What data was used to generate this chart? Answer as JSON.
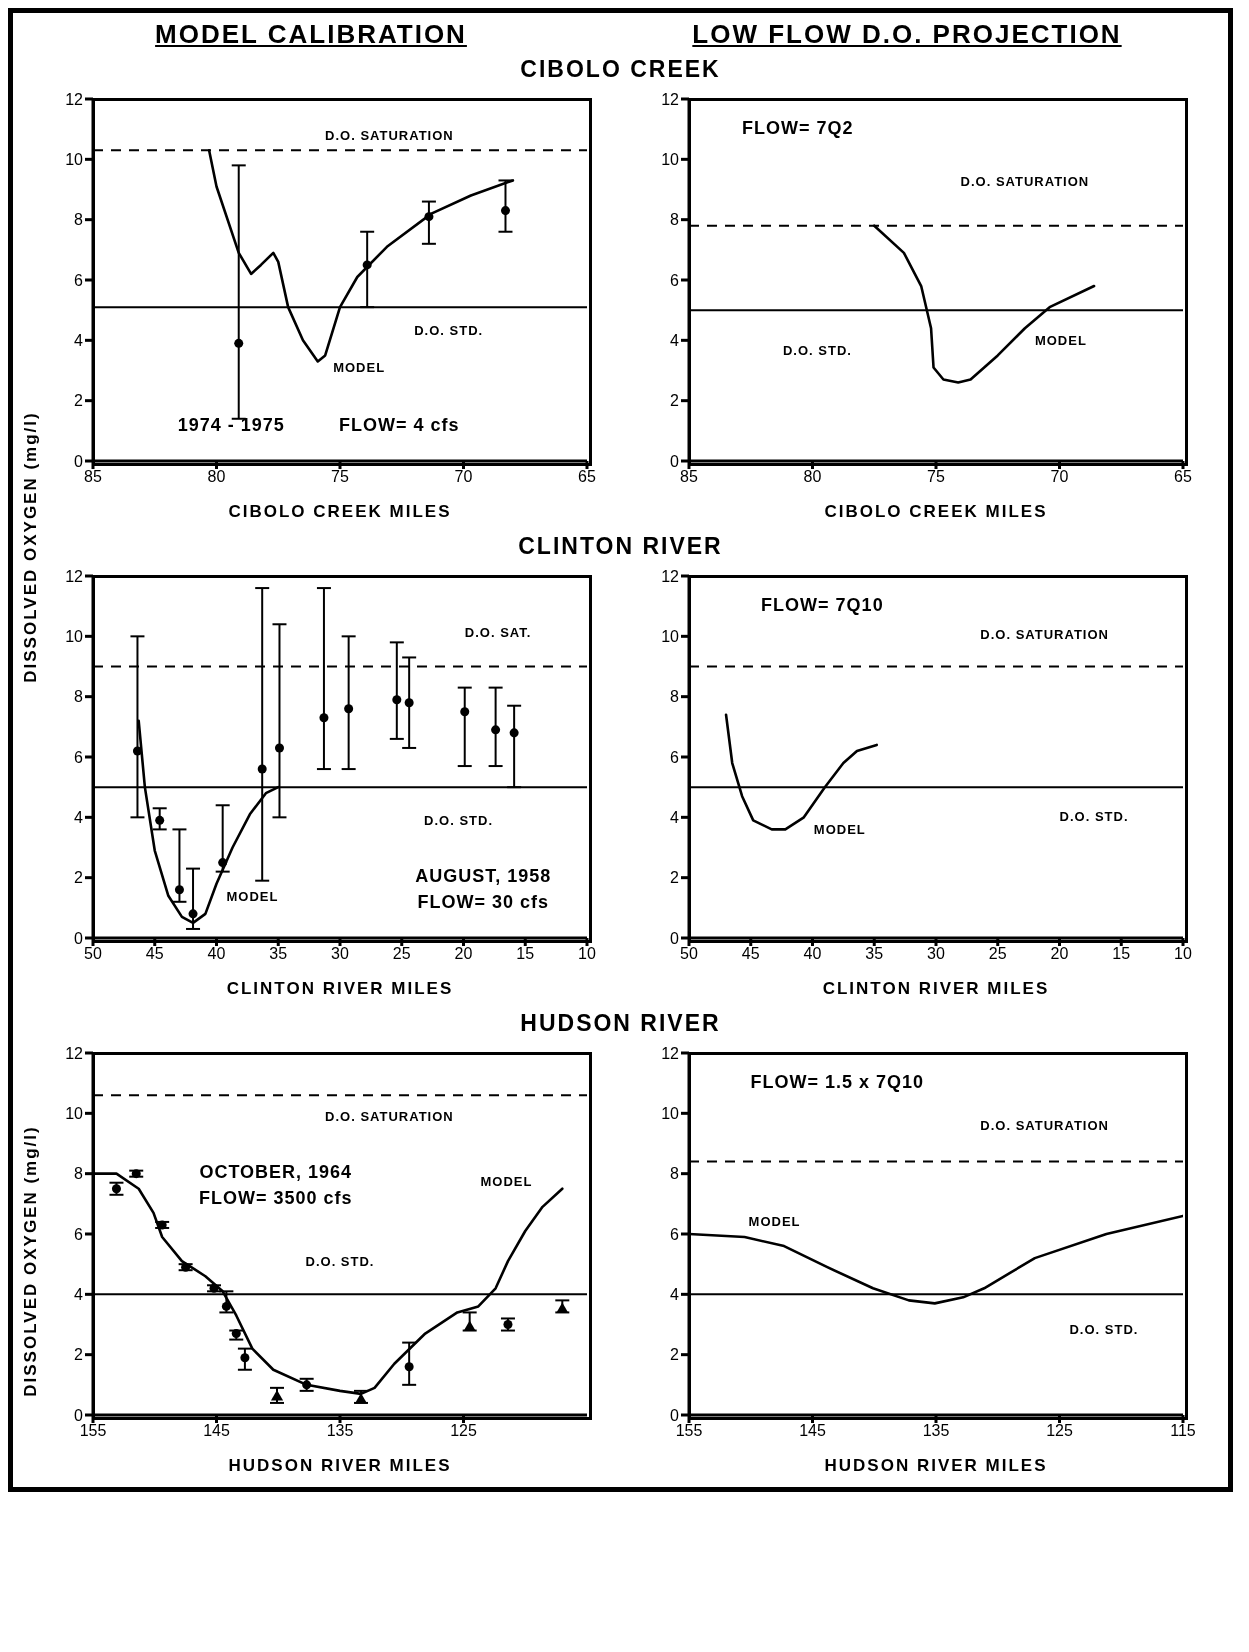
{
  "chart_data": [
    {
      "type": "line",
      "title": "MODEL CALIBRATION",
      "subtitle": "CIBOLO CREEK",
      "xlabel": "CIBOLO CREEK MILES",
      "ylabel": "DISSOLVED OXYGEN (mg/l)",
      "xlim": [
        85,
        65
      ],
      "xticks": [
        85,
        80,
        75,
        70,
        65
      ],
      "ylim": [
        0,
        12
      ],
      "yticks": [
        0,
        2,
        4,
        6,
        8,
        10,
        12
      ],
      "annotations": [
        "1974 - 1975",
        "FLOW= 4 cfs"
      ],
      "ref_lines": [
        {
          "axis": "y",
          "value": 10.3,
          "label": "D.O. SATURATION",
          "line_style": "dashed",
          "color": "#000000"
        },
        {
          "axis": "y",
          "value": 5.1,
          "label": "D.O. STD.",
          "line_style": "solid",
          "color": "#000000"
        }
      ],
      "series": [
        {
          "name": "MODEL",
          "type": "line",
          "color": "#000000",
          "x": [
            80.3,
            80.0,
            79.1,
            78.6,
            78.2,
            77.7,
            77.5,
            77.1,
            76.5,
            75.9,
            75.6,
            75.0,
            74.3,
            73.1,
            71.3,
            69.7,
            68.0
          ],
          "values": [
            10.3,
            9.1,
            6.9,
            6.2,
            6.5,
            6.9,
            6.6,
            5.1,
            4.0,
            3.3,
            3.5,
            5.1,
            6.1,
            7.1,
            8.2,
            8.8,
            9.3
          ]
        },
        {
          "type": "scatter",
          "marker": "circle",
          "color": "#000000",
          "x": [
            79.1,
            73.9,
            71.4,
            68.3
          ],
          "values": [
            3.9,
            6.5,
            8.1,
            8.3
          ],
          "errors": [
            [
              1.4,
              9.8
            ],
            [
              5.1,
              7.6
            ],
            [
              7.2,
              8.6
            ],
            [
              7.6,
              9.3
            ]
          ]
        }
      ]
    },
    {
      "type": "line",
      "title": "LOW FLOW D.O. PROJECTION",
      "xlabel": "CIBOLO CREEK MILES",
      "xlim": [
        85,
        65
      ],
      "xticks": [
        85,
        80,
        75,
        70,
        65
      ],
      "ylim": [
        0,
        12
      ],
      "yticks": [
        0,
        2,
        4,
        6,
        8,
        10,
        12
      ],
      "annotations": [
        "FLOW= 7Q2"
      ],
      "ref_lines": [
        {
          "axis": "y",
          "value": 7.8,
          "label": "D.O. SATURATION",
          "line_style": "dashed",
          "color": "#000000"
        },
        {
          "axis": "y",
          "value": 5.0,
          "label": "D.O. STD.",
          "line_style": "solid",
          "color": "#000000"
        }
      ],
      "series": [
        {
          "name": "MODEL",
          "type": "line",
          "color": "#000000",
          "x": [
            77.5,
            76.3,
            75.6,
            75.2,
            75.1,
            74.7,
            74.1,
            73.6,
            72.5,
            71.4,
            70.4,
            68.6
          ],
          "values": [
            7.8,
            6.9,
            5.8,
            4.4,
            3.1,
            2.7,
            2.6,
            2.7,
            3.5,
            4.4,
            5.1,
            5.8
          ]
        }
      ]
    },
    {
      "type": "line",
      "subtitle": "CLINTON RIVER",
      "xlabel": "CLINTON RIVER MILES",
      "xlim": [
        50,
        10
      ],
      "xticks": [
        50,
        45,
        40,
        35,
        30,
        25,
        20,
        15,
        10
      ],
      "ylim": [
        0,
        12
      ],
      "yticks": [
        0,
        2,
        4,
        6,
        8,
        10,
        12
      ],
      "annotations": [
        "AUGUST, 1958",
        "FLOW= 30 cfs"
      ],
      "ref_lines": [
        {
          "axis": "y",
          "value": 9.0,
          "label": "D.O. SAT.",
          "line_style": "dashed",
          "color": "#000000"
        },
        {
          "axis": "y",
          "value": 5.0,
          "label": "D.O. STD.",
          "line_style": "solid",
          "color": "#000000"
        }
      ],
      "series": [
        {
          "name": "MODEL",
          "type": "line",
          "color": "#000000",
          "x": [
            46.3,
            45.8,
            45.0,
            43.9,
            42.8,
            41.9,
            40.9,
            40.0,
            38.7,
            37.3,
            36.0,
            35.0
          ],
          "values": [
            7.2,
            5.0,
            2.9,
            1.4,
            0.7,
            0.5,
            0.8,
            1.8,
            3.0,
            4.1,
            4.8,
            5.0
          ]
        },
        {
          "type": "scatter",
          "marker": "circle",
          "color": "#000000",
          "x": [
            46.4,
            44.6,
            43.0,
            41.9,
            39.5,
            36.3,
            34.9,
            31.3,
            29.3,
            25.4,
            24.4,
            19.9,
            17.4,
            15.9
          ],
          "values": [
            6.2,
            3.9,
            1.6,
            0.8,
            2.5,
            5.6,
            6.3,
            7.3,
            7.6,
            7.9,
            7.8,
            7.5,
            6.9,
            6.8
          ],
          "errors": [
            [
              4.0,
              10.0
            ],
            [
              3.6,
              4.3
            ],
            [
              1.2,
              3.6
            ],
            [
              0.3,
              2.3
            ],
            [
              2.2,
              4.4
            ],
            [
              1.9,
              11.6
            ],
            [
              4.0,
              10.4
            ],
            [
              5.6,
              11.6
            ],
            [
              5.6,
              10.0
            ],
            [
              6.6,
              9.8
            ],
            [
              6.3,
              9.3
            ],
            [
              5.7,
              8.3
            ],
            [
              5.7,
              8.3
            ],
            [
              5.0,
              7.7
            ]
          ]
        }
      ]
    },
    {
      "type": "line",
      "xlabel": "CLINTON RIVER MILES",
      "xlim": [
        50,
        10
      ],
      "xticks": [
        50,
        45,
        40,
        35,
        30,
        25,
        20,
        15,
        10
      ],
      "ylim": [
        0,
        12
      ],
      "yticks": [
        0,
        2,
        4,
        6,
        8,
        10,
        12
      ],
      "annotations": [
        "FLOW= 7Q10"
      ],
      "ref_lines": [
        {
          "axis": "y",
          "value": 9.0,
          "label": "D.O. SATURATION",
          "line_style": "dashed",
          "color": "#000000"
        },
        {
          "axis": "y",
          "value": 5.0,
          "label": "D.O. STD.",
          "line_style": "solid",
          "color": "#000000"
        }
      ],
      "series": [
        {
          "name": "MODEL",
          "type": "line",
          "color": "#000000",
          "x": [
            47.0,
            46.5,
            45.7,
            44.8,
            43.3,
            42.2,
            40.7,
            39.0,
            37.5,
            36.4,
            34.8
          ],
          "values": [
            7.4,
            5.8,
            4.7,
            3.9,
            3.6,
            3.6,
            4.0,
            5.0,
            5.8,
            6.2,
            6.4
          ]
        }
      ]
    },
    {
      "type": "line",
      "subtitle": "HUDSON RIVER",
      "xlabel": "HUDSON RIVER MILES",
      "ylabel": "DISSOLVED OXYGEN (mg/l)",
      "xlim": [
        155,
        115
      ],
      "xticks": [
        155,
        145,
        135,
        125
      ],
      "ylim": [
        0,
        12
      ],
      "yticks": [
        0,
        2,
        4,
        6,
        8,
        10,
        12
      ],
      "annotations": [
        "OCTOBER, 1964",
        "FLOW= 3500 cfs"
      ],
      "ref_lines": [
        {
          "axis": "y",
          "value": 10.6,
          "label": "D.O. SATURATION",
          "line_style": "dashed",
          "color": "#000000"
        },
        {
          "axis": "y",
          "value": 4.0,
          "label": "D.O. STD.",
          "line_style": "solid",
          "color": "#000000"
        }
      ],
      "series": [
        {
          "name": "MODEL",
          "type": "line",
          "color": "#000000",
          "x": [
            155,
            153.1,
            151.3,
            150.1,
            149.4,
            147.8,
            145.9,
            144.5,
            143.4,
            142.1,
            140.4,
            137.7,
            135.0,
            133.3,
            132.2,
            130.6,
            128.1,
            125.5,
            123.8,
            122.4,
            121.4,
            120.0,
            118.6,
            117.0
          ],
          "values": [
            8.0,
            8.0,
            7.5,
            6.7,
            5.9,
            5.1,
            4.6,
            4.1,
            3.3,
            2.2,
            1.5,
            1.0,
            0.8,
            0.7,
            0.9,
            1.7,
            2.7,
            3.4,
            3.6,
            4.2,
            5.1,
            6.1,
            6.9,
            7.5
          ]
        },
        {
          "type": "scatter",
          "marker": "circle",
          "color": "#000000",
          "x": [
            153.1,
            151.5,
            149.4,
            147.5,
            145.2,
            144.2,
            143.4,
            142.7,
            137.7,
            129.4,
            121.4
          ],
          "values": [
            7.5,
            8.0,
            6.3,
            4.9,
            4.2,
            3.6,
            2.7,
            1.9,
            1.0,
            1.6,
            3.0
          ],
          "errors": [
            [
              7.3,
              7.7
            ],
            [
              7.9,
              8.1
            ],
            [
              6.2,
              6.4
            ],
            [
              4.8,
              5.0
            ],
            [
              4.1,
              4.3
            ],
            [
              3.4,
              4.1
            ],
            [
              2.5,
              2.8
            ],
            [
              1.5,
              2.2
            ],
            [
              0.8,
              1.2
            ],
            [
              1.0,
              2.4
            ],
            [
              2.8,
              3.2
            ]
          ]
        },
        {
          "type": "scatter",
          "marker": "triangle",
          "color": "#000000",
          "x": [
            140.1,
            133.3,
            124.5,
            117.0
          ],
          "values": [
            0.6,
            0.5,
            2.9,
            3.5
          ],
          "errors": [
            [
              0.4,
              0.9
            ],
            [
              0.4,
              0.8
            ],
            [
              2.8,
              3.4
            ],
            [
              3.4,
              3.8
            ]
          ]
        }
      ]
    },
    {
      "type": "line",
      "xlabel": "HUDSON RIVER MILES",
      "xlim": [
        155,
        115
      ],
      "xticks": [
        155,
        145,
        135,
        125,
        115
      ],
      "ylim": [
        0,
        12
      ],
      "yticks": [
        0,
        2,
        4,
        6,
        8,
        10,
        12
      ],
      "annotations": [
        "FLOW= 1.5 x 7Q10"
      ],
      "ref_lines": [
        {
          "axis": "y",
          "value": 8.4,
          "label": "D.O. SATURATION",
          "line_style": "dashed",
          "color": "#000000"
        },
        {
          "axis": "y",
          "value": 4.0,
          "label": "D.O. STD.",
          "line_style": "solid",
          "color": "#000000"
        }
      ],
      "series": [
        {
          "name": "MODEL",
          "type": "line",
          "color": "#000000",
          "x": [
            155,
            150.5,
            147.3,
            143.8,
            140.1,
            137.2,
            135.1,
            132.8,
            131.1,
            127.0,
            121.2,
            115
          ],
          "values": [
            6.0,
            5.9,
            5.6,
            4.9,
            4.2,
            3.8,
            3.7,
            3.9,
            4.2,
            5.2,
            6.0,
            6.6
          ]
        }
      ]
    }
  ]
}
